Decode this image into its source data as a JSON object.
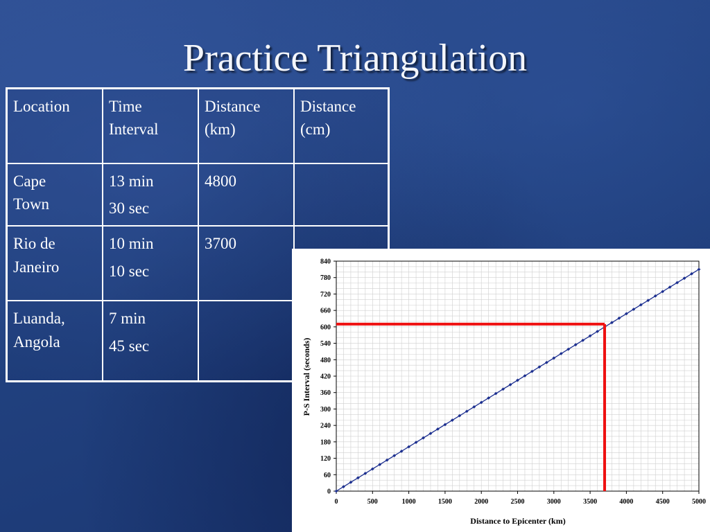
{
  "slide": {
    "title": "Practice Triangulation"
  },
  "table": {
    "headers": [
      [
        "Location"
      ],
      [
        "Time",
        "Interval"
      ],
      [
        "Distance",
        "(km)"
      ],
      [
        "Distance",
        "(cm)"
      ]
    ],
    "rows": [
      {
        "location": [
          "Cape",
          "Town"
        ],
        "time": [
          "13 min",
          "30 sec"
        ],
        "distance_km": "4800",
        "distance_cm": ""
      },
      {
        "location": [
          "Rio de",
          "Janeiro"
        ],
        "time": [
          "10 min",
          "10 sec"
        ],
        "distance_km": "3700",
        "distance_cm": ""
      },
      {
        "location": [
          "Luanda,",
          "Angola"
        ],
        "time": [
          "7 min",
          "45 sec"
        ],
        "distance_km": "",
        "distance_cm": ""
      }
    ]
  },
  "chart_data": {
    "type": "line",
    "xlabel": "Distance to Epicenter (km)",
    "ylabel": "P-S Interval (seconds)",
    "xlim": [
      0,
      5000
    ],
    "ylim": [
      0,
      840
    ],
    "x_ticks": [
      0,
      500,
      1000,
      1500,
      2000,
      2500,
      3000,
      3500,
      4000,
      4500,
      5000
    ],
    "y_ticks": [
      0,
      60,
      120,
      180,
      240,
      300,
      360,
      420,
      480,
      540,
      600,
      660,
      720,
      780,
      840
    ],
    "grid": true,
    "series": [
      {
        "x_start": 0,
        "x_end": 5000,
        "x_step": 100,
        "y_start": 0,
        "y_end": 810,
        "color": "#1c2f8f",
        "marker": "diamond"
      }
    ],
    "annotation": {
      "color": "#ee1111",
      "y_value": 610,
      "x_value": 3700
    }
  }
}
